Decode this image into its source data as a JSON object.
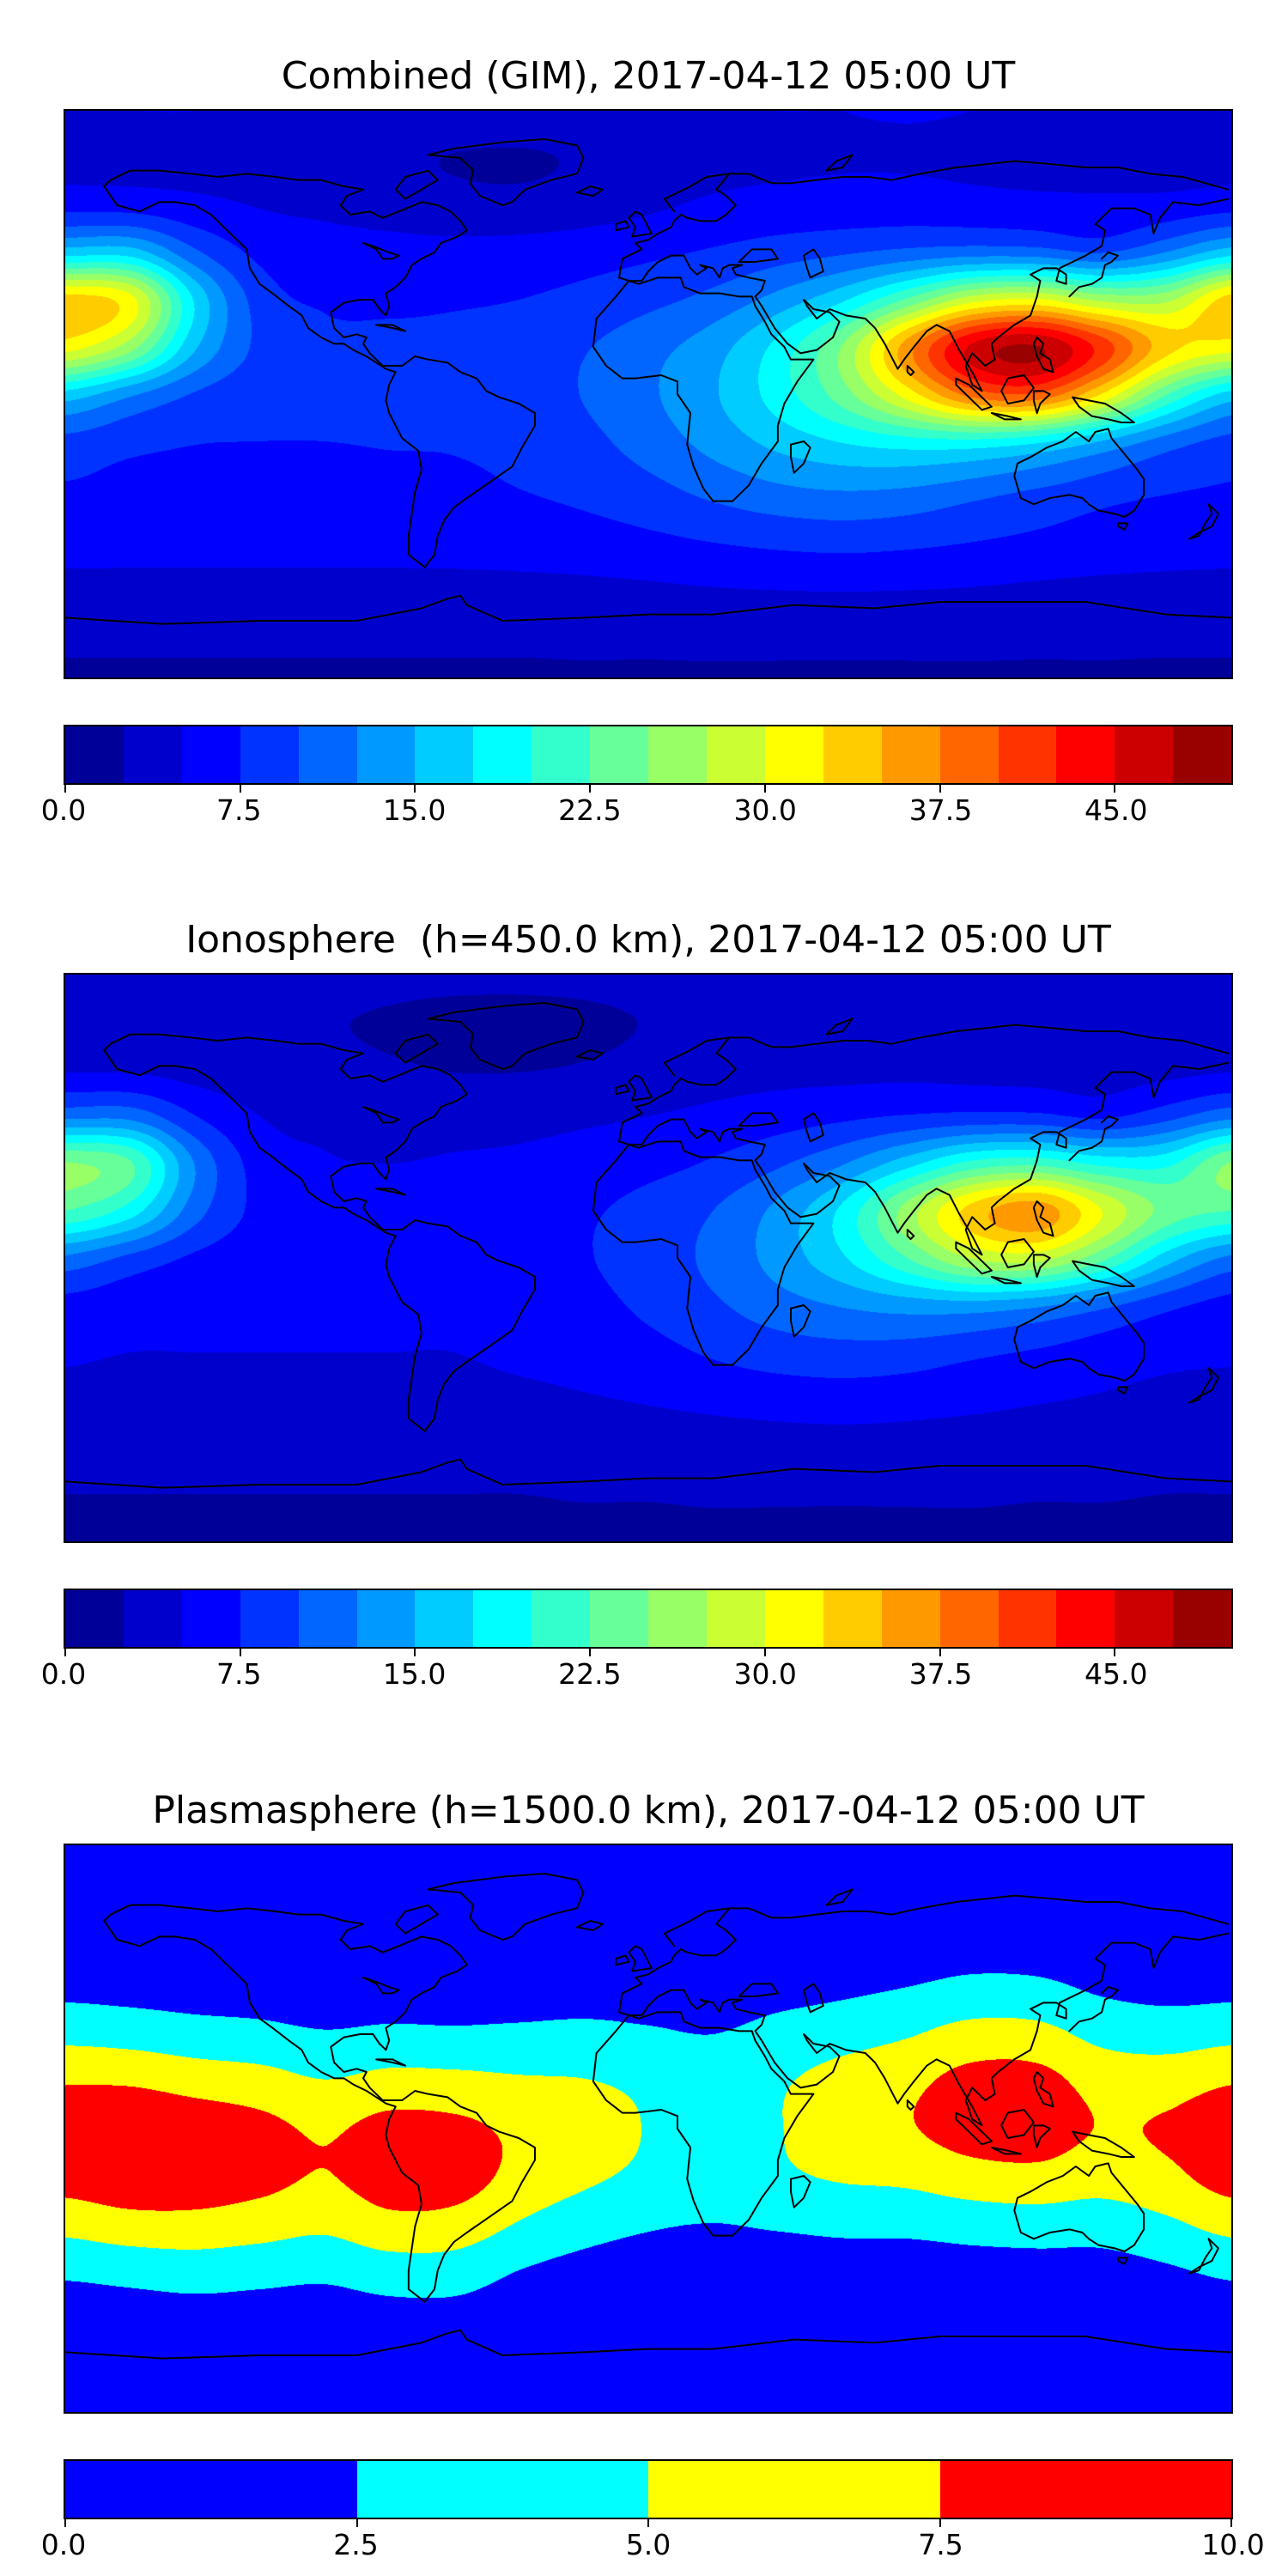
{
  "figure": {
    "background": "#ffffff",
    "map_outline_color": "#000000",
    "coastline_color": "#000000"
  },
  "chart_data": [
    {
      "type": "heatmap",
      "subtype": "filled-contour world map",
      "title": "Combined (GIM), 2017-04-12 05:00 UT",
      "projection": "equirectangular, lon -180..180, lat 90..-90",
      "colormap": "jet",
      "lon": [
        -180,
        -160,
        -140,
        -120,
        -100,
        -80,
        -60,
        -40,
        -20,
        0,
        20,
        40,
        60,
        80,
        100,
        120,
        140,
        160,
        180
      ],
      "lat": [
        90,
        75,
        60,
        45,
        30,
        15,
        0,
        -15,
        -30,
        -45,
        -60,
        -75,
        -90
      ],
      "values": [
        [
          5.0,
          5.0,
          5.0,
          4.9,
          4.8,
          4.6,
          4.4,
          4.4,
          4.5,
          4.7,
          4.9,
          5.0,
          5.0,
          5.1,
          5.0,
          5.0,
          5.0,
          5.0,
          5.0
        ],
        [
          4.6,
          4.6,
          4.5,
          4.3,
          3.8,
          3.1,
          2.4,
          2.2,
          2.8,
          3.6,
          4.3,
          4.6,
          4.8,
          4.8,
          4.7,
          4.6,
          4.6,
          4.5,
          4.6
        ],
        [
          6.5,
          6.4,
          5.6,
          4.9,
          4.5,
          3.9,
          3.4,
          3.3,
          3.8,
          4.6,
          5.4,
          5.8,
          6.0,
          6.1,
          5.9,
          5.7,
          5.5,
          5.8,
          6.5
        ],
        [
          16.4,
          16.3,
          10.5,
          6.9,
          6.1,
          5.9,
          5.8,
          6.0,
          6.4,
          7.0,
          7.8,
          8.8,
          9.7,
          10.7,
          11.4,
          11.2,
          9.9,
          12.6,
          16.4
        ],
        [
          33.7,
          30.9,
          17.2,
          8.9,
          7.2,
          7.0,
          7.2,
          7.5,
          8.2,
          9.3,
          10.8,
          13.4,
          17.1,
          22.9,
          28.9,
          30.3,
          26.9,
          26.9,
          33.7
        ],
        [
          31.2,
          26.1,
          15.4,
          9.4,
          8.1,
          8.1,
          8.2,
          8.7,
          9.8,
          11.6,
          13.9,
          18.3,
          25.2,
          36.3,
          45.5,
          47.6,
          41.5,
          33.5,
          31.2
        ],
        [
          16.6,
          13.0,
          9.8,
          8.3,
          8.1,
          8.1,
          8.3,
          8.9,
          10.1,
          12.1,
          14.7,
          18.7,
          23.9,
          31.2,
          38.5,
          39.6,
          32.4,
          22.7,
          16.6
        ],
        [
          9.2,
          8.2,
          7.6,
          7.5,
          7.5,
          7.6,
          7.7,
          8.2,
          9.3,
          11.1,
          13.4,
          15.8,
          17.7,
          19.0,
          19.4,
          18.1,
          14.9,
          11.4,
          9.2
        ],
        [
          7.3,
          7.0,
          7.0,
          7.0,
          7.0,
          7.0,
          7.0,
          7.5,
          8.2,
          9.3,
          10.8,
          12.1,
          12.7,
          12.4,
          11.3,
          10.0,
          8.7,
          7.8,
          7.3
        ],
        [
          6.1,
          6.0,
          6.0,
          6.0,
          6.0,
          6.0,
          6.1,
          6.2,
          6.6,
          7.2,
          7.9,
          8.5,
          8.8,
          8.5,
          7.9,
          7.2,
          6.6,
          6.2,
          6.1
        ],
        [
          4.5,
          4.5,
          4.5,
          4.5,
          4.5,
          4.5,
          4.5,
          4.6,
          4.7,
          4.9,
          5.2,
          5.4,
          5.5,
          5.4,
          5.2,
          4.9,
          4.7,
          4.6,
          4.5
        ],
        [
          3.0,
          3.0,
          3.0,
          3.0,
          3.0,
          3.0,
          3.0,
          3.0,
          3.1,
          3.1,
          3.2,
          3.2,
          3.2,
          3.2,
          3.2,
          3.1,
          3.1,
          3.0,
          3.0
        ],
        [
          2.3,
          2.3,
          2.3,
          2.3,
          2.3,
          2.3,
          2.3,
          2.3,
          2.3,
          2.3,
          2.3,
          2.3,
          2.3,
          2.3,
          2.3,
          2.3,
          2.3,
          2.3,
          2.3
        ]
      ],
      "levels": {
        "min": 0,
        "max": 50,
        "n": 20,
        "colors": [
          "#000099",
          "#0000CC",
          "#0000FF",
          "#0033FF",
          "#0066FF",
          "#0099FF",
          "#00CCFF",
          "#00FFFF",
          "#33FFCC",
          "#66FF99",
          "#99FF66",
          "#CCFF33",
          "#FFFF00",
          "#FFCC00",
          "#FF9900",
          "#FF6600",
          "#FF3300",
          "#FF0000",
          "#CC0000",
          "#990000"
        ]
      },
      "colorbar": {
        "orientation": "horizontal",
        "ticks": [
          0,
          7.5,
          15,
          22.5,
          30,
          37.5,
          45
        ],
        "labels": [
          "0.0",
          "7.5",
          "15.0",
          "22.5",
          "30.0",
          "37.5",
          "45.0"
        ]
      }
    },
    {
      "type": "heatmap",
      "subtype": "filled-contour world map",
      "title": "Ionosphere  (h=450.0 km), 2017-04-12 05:00 UT",
      "projection": "equirectangular, lon -180..180, lat 90..-90",
      "colormap": "jet",
      "lon": [
        -180,
        -160,
        -140,
        -120,
        -100,
        -80,
        -60,
        -40,
        -20,
        0,
        20,
        40,
        60,
        80,
        100,
        120,
        140,
        160,
        180
      ],
      "lat": [
        90,
        75,
        60,
        45,
        30,
        15,
        0,
        -15,
        -30,
        -45,
        -60,
        -75,
        -90
      ],
      "values": [
        [
          3.6,
          3.6,
          3.6,
          3.5,
          3.5,
          3.3,
          3.2,
          3.2,
          3.2,
          3.4,
          3.5,
          3.6,
          3.6,
          3.7,
          3.6,
          3.6,
          3.6,
          3.6,
          3.6
        ],
        [
          3.3,
          3.3,
          3.2,
          3.1,
          2.7,
          2.2,
          1.7,
          1.6,
          2.0,
          2.6,
          3.1,
          3.3,
          3.5,
          3.5,
          3.4,
          3.3,
          3.3,
          3.2,
          3.3
        ],
        [
          4.7,
          4.6,
          4.0,
          3.5,
          3.2,
          2.8,
          2.4,
          2.4,
          2.7,
          3.3,
          3.9,
          4.2,
          4.3,
          4.4,
          4.2,
          4.1,
          4.0,
          4.2,
          4.7
        ],
        [
          11.8,
          11.7,
          7.6,
          5.0,
          4.4,
          4.2,
          4.2,
          4.3,
          4.6,
          5.0,
          5.6,
          6.3,
          7.0,
          7.7,
          8.2,
          8.1,
          7.1,
          9.1,
          11.8
        ],
        [
          25.2,
          22.8,
          12.4,
          6.4,
          5.2,
          5.0,
          5.2,
          5.4,
          5.9,
          6.7,
          7.8,
          9.6,
          12.3,
          16.5,
          20.8,
          21.8,
          19.4,
          19.4,
          25.2
        ],
        [
          22.5,
          18.8,
          11.1,
          6.8,
          5.8,
          5.8,
          5.9,
          6.3,
          7.1,
          8.4,
          10.0,
          13.2,
          18.1,
          26.1,
          33.5,
          36.5,
          30.0,
          24.1,
          22.5
        ],
        [
          12.0,
          9.4,
          7.1,
          6.0,
          5.8,
          5.8,
          6.0,
          6.4,
          7.3,
          8.7,
          10.6,
          13.5,
          17.2,
          22.5,
          27.7,
          28.5,
          23.3,
          16.3,
          12.0
        ],
        [
          6.6,
          5.9,
          5.5,
          5.4,
          5.4,
          5.5,
          5.5,
          5.9,
          6.7,
          8.0,
          9.6,
          11.4,
          12.7,
          13.7,
          14.0,
          13.0,
          10.7,
          8.2,
          6.6
        ],
        [
          5.3,
          5.0,
          5.0,
          5.0,
          5.0,
          5.0,
          5.0,
          5.4,
          5.9,
          6.7,
          7.8,
          8.7,
          9.1,
          8.9,
          8.1,
          7.2,
          6.3,
          5.6,
          5.3
        ],
        [
          4.4,
          4.3,
          4.3,
          4.3,
          4.3,
          4.3,
          4.4,
          4.5,
          4.8,
          5.2,
          5.7,
          6.1,
          6.3,
          6.1,
          5.7,
          5.2,
          4.8,
          4.5,
          4.4
        ],
        [
          3.2,
          3.2,
          3.2,
          3.2,
          3.2,
          3.2,
          3.2,
          3.3,
          3.4,
          3.5,
          3.7,
          3.9,
          4.0,
          3.9,
          3.7,
          3.5,
          3.4,
          3.3,
          3.2
        ],
        [
          2.5,
          2.5,
          2.5,
          2.5,
          2.5,
          2.5,
          2.5,
          2.5,
          2.6,
          2.6,
          2.7,
          2.7,
          2.7,
          2.7,
          2.7,
          2.6,
          2.6,
          2.5,
          2.5
        ],
        [
          2.2,
          2.2,
          2.2,
          2.2,
          2.2,
          2.2,
          2.2,
          2.2,
          2.2,
          2.2,
          2.2,
          2.2,
          2.2,
          2.2,
          2.2,
          2.2,
          2.2,
          2.2,
          2.2
        ]
      ],
      "levels": {
        "min": 0,
        "max": 50,
        "n": 20,
        "colors": [
          "#000099",
          "#0000CC",
          "#0000FF",
          "#0033FF",
          "#0066FF",
          "#0099FF",
          "#00CCFF",
          "#00FFFF",
          "#33FFCC",
          "#66FF99",
          "#99FF66",
          "#CCFF33",
          "#FFFF00",
          "#FFCC00",
          "#FF9900",
          "#FF6600",
          "#FF3300",
          "#FF0000",
          "#CC0000",
          "#990000"
        ]
      },
      "colorbar": {
        "orientation": "horizontal",
        "ticks": [
          0,
          7.5,
          15,
          22.5,
          30,
          37.5,
          45
        ],
        "labels": [
          "0.0",
          "7.5",
          "15.0",
          "22.5",
          "30.0",
          "37.5",
          "45.0"
        ]
      }
    },
    {
      "type": "heatmap",
      "subtype": "filled-contour world map",
      "title": "Plasmasphere (h=1500.0 km), 2017-04-12 05:00 UT",
      "projection": "equirectangular, lon -180..180, lat 90..-90",
      "colormap": "jet (4 discrete levels)",
      "lon": [
        -180,
        -160,
        -140,
        -120,
        -100,
        -80,
        -60,
        -40,
        -20,
        0,
        20,
        40,
        60,
        80,
        100,
        120,
        140,
        160,
        180
      ],
      "lat": [
        90,
        75,
        60,
        45,
        30,
        15,
        0,
        -15,
        -30,
        -45,
        -60,
        -75,
        -90
      ],
      "values": [
        [
          0.1,
          0.1,
          0.1,
          0.1,
          0.1,
          0.1,
          0.1,
          0.1,
          0.1,
          0.1,
          0.1,
          0.1,
          0.1,
          0.1,
          0.1,
          0.1,
          0.1,
          0.1,
          0.1
        ],
        [
          0.1,
          0.1,
          0.1,
          0.1,
          0.1,
          0.1,
          0.1,
          0.1,
          0.1,
          0.1,
          0.1,
          0.1,
          0.1,
          0.1,
          0.1,
          0.1,
          0.1,
          0.1,
          0.1
        ],
        [
          0.6,
          0.5,
          0.4,
          0.4,
          0.3,
          0.3,
          0.3,
          0.4,
          0.4,
          0.4,
          0.4,
          0.6,
          0.7,
          0.9,
          1.2,
          1.1,
          0.7,
          0.6,
          0.6
        ],
        [
          1.8,
          1.6,
          1.4,
          1.3,
          1.0,
          1.1,
          1.1,
          1.2,
          1.4,
          1.3,
          1.1,
          1.6,
          2.0,
          2.5,
          3.1,
          3.0,
          2.1,
          1.7,
          1.8
        ],
        [
          4.3,
          4.0,
          3.5,
          3.2,
          2.7,
          3.0,
          2.9,
          3.0,
          3.1,
          2.8,
          2.5,
          3.3,
          4.0,
          4.8,
          5.9,
          5.8,
          4.3,
          3.9,
          4.3
        ],
        [
          7.3,
          7.2,
          6.5,
          6.0,
          5.1,
          5.8,
          5.7,
          5.3,
          5.1,
          4.5,
          3.9,
          4.7,
          6.0,
          6.9,
          8.3,
          8.3,
          6.6,
          6.4,
          7.3
        ],
        [
          9.3,
          9.6,
          9.0,
          8.2,
          7.2,
          8.3,
          8.1,
          7.0,
          6.2,
          4.9,
          4.6,
          4.9,
          6.6,
          7.3,
          8.6,
          8.7,
          7.4,
          7.8,
          9.3
        ],
        [
          8.6,
          9.3,
          9.1,
          8.3,
          7.4,
          8.7,
          8.6,
          6.8,
          5.5,
          4.5,
          3.9,
          4.6,
          5.3,
          5.6,
          6.5,
          6.8,
          6.1,
          6.9,
          8.6
        ],
        [
          5.9,
          6.6,
          6.7,
          6.2,
          5.6,
          6.8,
          6.6,
          4.9,
          3.6,
          2.8,
          2.5,
          2.8,
          3.1,
          3.2,
          3.6,
          3.8,
          3.7,
          4.6,
          5.9
        ],
        [
          3.0,
          3.4,
          3.7,
          3.4,
          3.1,
          3.8,
          3.8,
          2.5,
          1.7,
          1.3,
          1.1,
          1.2,
          1.4,
          1.3,
          1.5,
          1.6,
          1.6,
          2.2,
          3.0
        ],
        [
          1.1,
          1.3,
          1.5,
          1.4,
          1.3,
          1.6,
          1.6,
          1.0,
          0.6,
          0.4,
          0.4,
          0.4,
          0.4,
          0.4,
          0.4,
          0.5,
          0.5,
          0.8,
          1.1
        ],
        [
          0.2,
          0.2,
          0.2,
          0.2,
          0.2,
          0.2,
          0.2,
          0.2,
          0.2,
          0.2,
          0.2,
          0.2,
          0.2,
          0.2,
          0.2,
          0.2,
          0.2,
          0.2,
          0.2
        ],
        [
          0.1,
          0.1,
          0.1,
          0.1,
          0.1,
          0.1,
          0.1,
          0.1,
          0.1,
          0.1,
          0.1,
          0.1,
          0.1,
          0.1,
          0.1,
          0.1,
          0.1,
          0.1,
          0.1
        ]
      ],
      "levels": {
        "min": 0,
        "max": 10,
        "n": 4,
        "colors": [
          "#0000FF",
          "#00FFFF",
          "#FFFF00",
          "#FF0000"
        ]
      },
      "colorbar": {
        "orientation": "horizontal",
        "ticks": [
          0,
          2.5,
          5,
          7.5,
          10
        ],
        "labels": [
          "0.0",
          "2.5",
          "5.0",
          "7.5",
          "10.0"
        ]
      }
    }
  ]
}
